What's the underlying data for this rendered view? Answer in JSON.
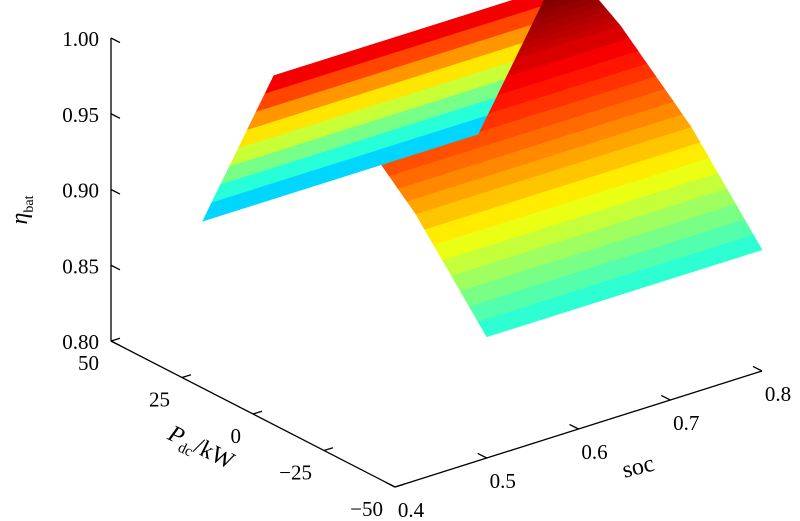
{
  "chart_data": {
    "type": "surface3d",
    "colormap": "jet",
    "grid": false,
    "z_label": {
      "main": "η",
      "sub": "bat"
    },
    "x_label": "soc",
    "y_label": {
      "main": "P",
      "sub": "dc",
      "rest": "/kW"
    },
    "xlim": [
      0.4,
      0.8
    ],
    "ylim": [
      -50,
      50
    ],
    "zlim": [
      0.8,
      1.0
    ],
    "x_ticks": [
      0.4,
      0.5,
      0.6,
      0.7,
      0.8
    ],
    "x_tick_labels": [
      "0.4",
      "0.5",
      "0.6",
      "0.7",
      "0.8"
    ],
    "y_ticks": [
      -50,
      -25,
      0,
      25,
      50
    ],
    "y_tick_labels": [
      "−50",
      "−25",
      "0",
      "25",
      "50"
    ],
    "z_ticks": [
      0.8,
      0.85,
      0.9,
      0.95,
      1.0
    ],
    "z_tick_labels": [
      "0.80",
      "0.85",
      "0.90",
      "0.95",
      "1.00"
    ],
    "surface": {
      "soc": [
        0.5,
        0.8
      ],
      "p_dc": [
        -50,
        -25,
        0,
        12,
        25,
        50
      ],
      "eta": [
        0.88,
        0.937,
        0.98,
        0.995,
        0.98,
        0.86
      ]
    }
  }
}
